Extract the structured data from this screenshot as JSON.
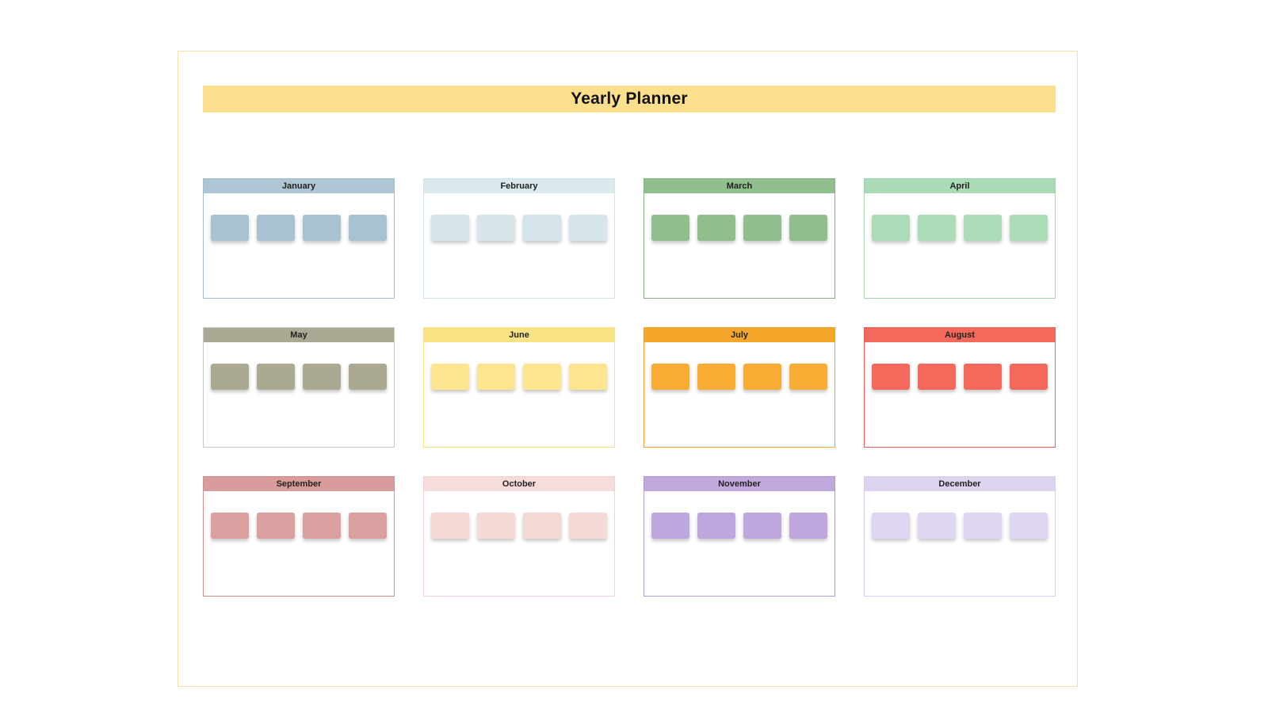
{
  "page": {
    "title": "Yearly Planner",
    "title_bar_color": "#fbdf8c",
    "page_border_color": "#efe3a9",
    "background_color": "#ffffff"
  },
  "planner": {
    "months": [
      {
        "name": "January",
        "header_color": "#afc5d3",
        "block_color": "#a9c2d1",
        "border_color": "#a4bdcc",
        "block_count": 4
      },
      {
        "name": "February",
        "header_color": "#d9e9ed",
        "block_color": "#d5e5e9",
        "border_color": "#cfe3e8",
        "block_count": 4
      },
      {
        "name": "March",
        "header_color": "#90bf8e",
        "block_color": "#90be8e",
        "border_color": "#84b383",
        "block_count": 4
      },
      {
        "name": "April",
        "header_color": "#aadab6",
        "block_color": "#abdbb7",
        "border_color": "#a0d4ae",
        "block_count": 4
      },
      {
        "name": "May",
        "header_color": "#aba994",
        "block_color": "#aba992",
        "border_color": "#c9c9c3",
        "block_count": 4
      },
      {
        "name": "June",
        "header_color": "#fae385",
        "block_color": "#fbe68f",
        "border_color": "#f8e083",
        "block_count": 4
      },
      {
        "name": "July",
        "header_color": "#f6a72b",
        "block_color": "#f8ac33",
        "border_color": "#f2a02b",
        "block_count": 4
      },
      {
        "name": "August",
        "header_color": "#f4695b",
        "block_color": "#f4695c",
        "border_color": "#ef5d4e",
        "block_count": 4
      },
      {
        "name": "September",
        "header_color": "#d99c9c",
        "block_color": "#da9f9f",
        "border_color": "#cc8f8f",
        "block_count": 4
      },
      {
        "name": "October",
        "header_color": "#f6dcda",
        "block_color": "#f5d9d7",
        "border_color": "#f0d2d0",
        "block_count": 4
      },
      {
        "name": "November",
        "header_color": "#c1a9de",
        "block_color": "#bfa7dd",
        "border_color": "#b398d6",
        "block_count": 4
      },
      {
        "name": "December",
        "header_color": "#ddd3ef",
        "block_color": "#dfd7f1",
        "border_color": "#d8cfec",
        "block_count": 4
      }
    ]
  }
}
